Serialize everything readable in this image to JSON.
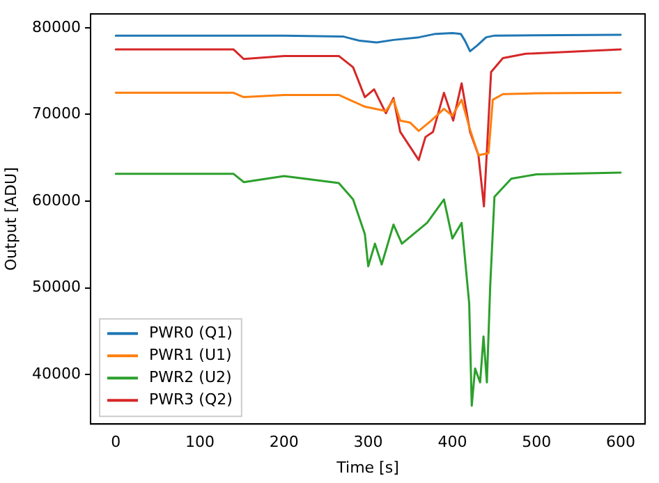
{
  "chart_data": {
    "type": "line",
    "xlabel": "Time [s]",
    "ylabel": "Output [ADU]",
    "xlim": [
      -30,
      629
    ],
    "ylim": [
      34300,
      81600
    ],
    "xticks": [
      0,
      100,
      200,
      300,
      400,
      500,
      600
    ],
    "yticks": [
      40000,
      50000,
      60000,
      70000,
      80000
    ],
    "grid": false,
    "legend": "bottom left",
    "marker": "none",
    "line_style": "solid",
    "series": [
      {
        "name": "PWR0 (Q1)",
        "color": "#1f77b4",
        "x": [
          0,
          100,
          200,
          270,
          290,
          310,
          330,
          360,
          380,
          400,
          410,
          415,
          421,
          430,
          440,
          450,
          600
        ],
        "values": [
          79100,
          79100,
          79100,
          79000,
          78500,
          78300,
          78600,
          78900,
          79300,
          79400,
          79300,
          78500,
          77300,
          78000,
          78900,
          79100,
          79200
        ]
      },
      {
        "name": "PWR1 (U1)",
        "color": "#ff7f0e",
        "x": [
          0,
          140,
          152,
          200,
          265,
          296,
          321,
          330,
          338,
          350,
          360,
          375,
          390,
          400,
          411,
          421,
          431,
          443,
          448,
          460,
          500,
          600
        ],
        "values": [
          72500,
          72500,
          72000,
          72250,
          72250,
          70900,
          70400,
          71700,
          69300,
          69050,
          68100,
          69300,
          70650,
          69850,
          71700,
          68250,
          65300,
          65550,
          71700,
          72350,
          72450,
          72500
        ]
      },
      {
        "name": "PWR2 (U2)",
        "color": "#2ca02c",
        "x": [
          0,
          140,
          152,
          200,
          265,
          282,
          296,
          300,
          308,
          316,
          330,
          340,
          370,
          390,
          400,
          411,
          420,
          423,
          427,
          433,
          437,
          441,
          445,
          450,
          470,
          500,
          600
        ],
        "values": [
          63150,
          63150,
          62200,
          62900,
          62100,
          60200,
          56200,
          52500,
          55100,
          52700,
          57300,
          55100,
          57500,
          60200,
          55700,
          57500,
          48200,
          36400,
          40700,
          39100,
          44400,
          39100,
          50300,
          60500,
          62600,
          63100,
          63300
        ]
      },
      {
        "name": "PWR3 (Q2)",
        "color": "#d62728",
        "x": [
          0,
          140,
          152,
          200,
          265,
          282,
          296,
          307,
          321,
          330,
          338,
          360,
          368,
          377,
          390,
          401,
          411,
          421,
          431,
          437.5,
          446,
          460,
          487,
          600
        ],
        "values": [
          77500,
          77500,
          76400,
          76750,
          76750,
          75450,
          72000,
          72900,
          70150,
          71900,
          68000,
          64750,
          67400,
          68000,
          72500,
          69300,
          73600,
          68000,
          65300,
          59400,
          74900,
          76500,
          77000,
          77500
        ]
      }
    ]
  }
}
